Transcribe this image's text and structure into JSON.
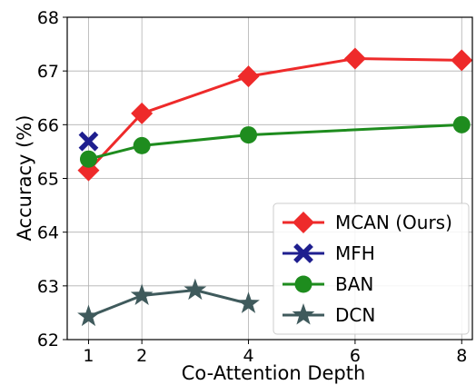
{
  "chart_data": {
    "type": "line",
    "xlabel": "Co-Attention Depth",
    "ylabel": "Accuracy (%)",
    "xlim": [
      0.6,
      8.2
    ],
    "ylim": [
      62,
      68
    ],
    "xticks": [
      1,
      2,
      4,
      6,
      8
    ],
    "yticks": [
      62,
      63,
      64,
      65,
      66,
      67,
      68
    ],
    "grid": true,
    "legend_position": "bottom-right",
    "series": [
      {
        "name": "MCAN (Ours)",
        "color": "#ee2a2a",
        "marker": "diamond",
        "x": [
          1,
          2,
          4,
          6,
          8
        ],
        "y": [
          65.15,
          66.21,
          66.9,
          67.23,
          67.2
        ]
      },
      {
        "name": "MFH",
        "color": "#1f1f8f",
        "marker": "x",
        "x": [
          1
        ],
        "y": [
          65.69
        ]
      },
      {
        "name": "BAN",
        "color": "#1e8c1e",
        "marker": "circle",
        "x": [
          1,
          2,
          4,
          8
        ],
        "y": [
          65.36,
          65.61,
          65.81,
          66.0
        ]
      },
      {
        "name": "DCN",
        "color": "#3f5a5c",
        "marker": "star",
        "x": [
          1,
          2,
          3,
          4
        ],
        "y": [
          62.43,
          62.82,
          62.92,
          62.67
        ]
      }
    ]
  }
}
